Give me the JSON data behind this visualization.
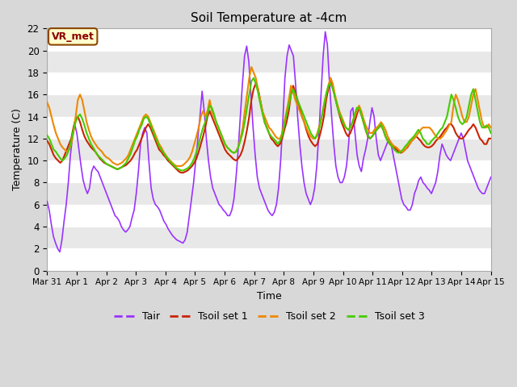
{
  "title": "Soil Temperature at -4cm",
  "xlabel": "Time",
  "ylabel": "Temperature (C)",
  "ylim": [
    0,
    22
  ],
  "xlim": [
    0,
    15
  ],
  "annotation": "VR_met",
  "fig_bg_color": "#d8d8d8",
  "plot_bg_color": "#e8e8e8",
  "band_color": "#ffffff",
  "line_colors": {
    "Tair": "#9933ff",
    "Tsoil set 1": "#cc2200",
    "Tsoil set 2": "#ee8800",
    "Tsoil set 3": "#44cc00"
  },
  "line_widths": {
    "Tair": 1.2,
    "Tsoil set 1": 1.5,
    "Tsoil set 2": 1.5,
    "Tsoil set 3": 1.5
  },
  "xtick_labels": [
    "Mar 31",
    "Apr 1",
    "Apr 2",
    "Apr 3",
    "Apr 4",
    "Apr 5",
    "Apr 6",
    "Apr 7",
    "Apr 8",
    "Apr 9",
    "Apr 10",
    "Apr 11",
    "Apr 12",
    "Apr 13",
    "Apr 14",
    "Apr 15"
  ],
  "xtick_positions": [
    0,
    1,
    2,
    3,
    4,
    5,
    6,
    7,
    8,
    9,
    10,
    11,
    12,
    13,
    14,
    15
  ],
  "ytick_labels": [
    0,
    2,
    4,
    6,
    8,
    10,
    12,
    14,
    16,
    18,
    20,
    22
  ],
  "tair_data": [
    6.3,
    5.5,
    4.2,
    3.1,
    2.5,
    2.0,
    1.7,
    2.8,
    4.5,
    6.0,
    8.0,
    10.5,
    12.2,
    13.3,
    12.5,
    11.0,
    9.5,
    8.2,
    7.5,
    7.0,
    7.5,
    9.0,
    9.5,
    9.2,
    9.0,
    8.5,
    8.0,
    7.5,
    7.0,
    6.5,
    6.0,
    5.5,
    5.0,
    4.8,
    4.5,
    4.0,
    3.7,
    3.5,
    3.7,
    4.0,
    4.8,
    5.5,
    7.0,
    9.0,
    11.5,
    12.5,
    13.0,
    12.5,
    9.8,
    7.5,
    6.5,
    6.0,
    5.8,
    5.5,
    5.0,
    4.5,
    4.2,
    3.8,
    3.5,
    3.2,
    3.0,
    2.8,
    2.7,
    2.6,
    2.5,
    2.8,
    3.5,
    5.0,
    6.5,
    8.0,
    10.0,
    12.0,
    14.0,
    16.3,
    14.5,
    12.0,
    10.0,
    8.5,
    7.5,
    7.0,
    6.5,
    6.0,
    5.8,
    5.5,
    5.3,
    5.0,
    5.0,
    5.5,
    6.5,
    8.5,
    11.0,
    14.0,
    17.0,
    19.5,
    20.4,
    19.0,
    16.0,
    13.0,
    10.5,
    8.5,
    7.5,
    7.0,
    6.5,
    6.0,
    5.5,
    5.2,
    5.0,
    5.3,
    6.0,
    7.5,
    10.0,
    13.5,
    17.5,
    19.5,
    20.5,
    20.0,
    19.5,
    17.0,
    14.0,
    11.5,
    9.5,
    8.0,
    7.0,
    6.5,
    6.0,
    6.5,
    7.5,
    9.5,
    12.5,
    16.0,
    19.5,
    21.7,
    20.5,
    17.0,
    14.0,
    11.5,
    9.5,
    8.5,
    8.0,
    8.0,
    8.5,
    9.5,
    11.5,
    14.5,
    14.8,
    12.5,
    10.5,
    9.5,
    9.0,
    10.2,
    11.0,
    12.0,
    13.5,
    14.8,
    14.0,
    12.0,
    10.5,
    10.0,
    10.5,
    11.0,
    11.5,
    12.0,
    11.5,
    10.5,
    9.5,
    8.5,
    7.5,
    6.5,
    6.0,
    5.8,
    5.5,
    5.5,
    6.0,
    7.0,
    7.5,
    8.2,
    8.5,
    8.0,
    7.8,
    7.5,
    7.3,
    7.0,
    7.5,
    8.0,
    9.0,
    10.5,
    11.5,
    11.0,
    10.5,
    10.2,
    10.0,
    10.5,
    11.0,
    11.5,
    12.0,
    12.5,
    12.0,
    11.0,
    10.0,
    9.5,
    9.0,
    8.5,
    8.0,
    7.5,
    7.2,
    7.0,
    7.0,
    7.5,
    8.0,
    8.5
  ],
  "ts1_data": [
    11.8,
    11.5,
    11.0,
    10.5,
    10.2,
    10.0,
    9.8,
    10.0,
    10.5,
    11.0,
    11.5,
    12.0,
    13.0,
    13.8,
    14.0,
    13.5,
    12.8,
    12.2,
    11.8,
    11.5,
    11.2,
    11.0,
    10.8,
    10.5,
    10.2,
    10.0,
    9.8,
    9.7,
    9.6,
    9.5,
    9.4,
    9.3,
    9.2,
    9.3,
    9.4,
    9.5,
    9.6,
    9.8,
    10.0,
    10.3,
    10.7,
    11.0,
    11.5,
    12.0,
    12.5,
    13.0,
    13.3,
    13.0,
    12.5,
    12.0,
    11.5,
    11.0,
    10.8,
    10.5,
    10.3,
    10.0,
    9.8,
    9.6,
    9.4,
    9.2,
    9.0,
    8.9,
    8.9,
    9.0,
    9.1,
    9.3,
    9.5,
    9.8,
    10.2,
    10.8,
    11.5,
    12.2,
    13.0,
    14.0,
    14.5,
    14.0,
    13.5,
    13.0,
    12.5,
    12.0,
    11.5,
    11.0,
    10.7,
    10.5,
    10.3,
    10.1,
    10.0,
    10.2,
    10.5,
    11.0,
    11.8,
    12.8,
    14.0,
    15.5,
    16.5,
    17.0,
    16.5,
    15.5,
    14.5,
    13.5,
    13.0,
    12.5,
    12.0,
    11.8,
    11.5,
    11.3,
    11.5,
    12.0,
    12.8,
    13.5,
    14.5,
    16.0,
    16.8,
    16.2,
    15.5,
    14.8,
    14.0,
    13.5,
    12.8,
    12.2,
    11.8,
    11.5,
    11.3,
    11.5,
    12.2,
    13.0,
    14.0,
    15.5,
    16.5,
    17.5,
    16.8,
    15.8,
    15.0,
    14.2,
    13.5,
    13.0,
    12.5,
    12.2,
    12.5,
    13.0,
    13.5,
    14.2,
    14.8,
    14.2,
    13.5,
    12.8,
    12.2,
    12.0,
    12.2,
    12.5,
    12.8,
    13.0,
    13.2,
    12.8,
    12.2,
    11.8,
    11.5,
    11.3,
    11.2,
    11.0,
    10.8,
    10.7,
    10.8,
    11.0,
    11.2,
    11.5,
    11.8,
    12.0,
    12.2,
    12.0,
    11.8,
    11.5,
    11.3,
    11.2,
    11.2,
    11.3,
    11.5,
    11.8,
    12.0,
    12.2,
    12.5,
    12.8,
    13.0,
    13.3,
    13.3,
    13.0,
    12.5,
    12.2,
    12.0,
    12.0,
    12.2,
    12.5,
    12.8,
    13.0,
    13.3,
    13.0,
    12.5,
    12.0,
    11.8,
    11.5,
    11.5,
    12.0,
    12.0
  ],
  "ts2_data": [
    15.3,
    14.8,
    14.0,
    13.2,
    12.5,
    12.0,
    11.5,
    11.2,
    11.0,
    10.8,
    11.0,
    11.5,
    12.5,
    14.0,
    15.5,
    16.0,
    15.5,
    14.5,
    13.5,
    12.8,
    12.2,
    11.8,
    11.5,
    11.2,
    11.0,
    10.8,
    10.5,
    10.3,
    10.2,
    10.0,
    9.8,
    9.7,
    9.6,
    9.7,
    9.8,
    10.0,
    10.2,
    10.5,
    11.0,
    11.5,
    12.0,
    12.5,
    13.0,
    13.5,
    14.0,
    14.2,
    14.0,
    13.5,
    13.0,
    12.5,
    12.0,
    11.5,
    11.2,
    10.8,
    10.5,
    10.2,
    10.0,
    9.8,
    9.6,
    9.5,
    9.5,
    9.5,
    9.6,
    9.8,
    10.0,
    10.3,
    10.8,
    11.5,
    12.2,
    13.0,
    14.0,
    14.5,
    14.0,
    14.5,
    15.5,
    14.5,
    14.0,
    13.5,
    13.0,
    12.5,
    12.0,
    11.5,
    11.2,
    11.0,
    10.8,
    10.7,
    10.8,
    11.2,
    12.0,
    13.0,
    14.5,
    16.0,
    17.5,
    18.5,
    18.0,
    17.5,
    16.5,
    15.5,
    14.5,
    14.0,
    13.5,
    13.0,
    12.8,
    12.5,
    12.2,
    12.0,
    12.0,
    12.5,
    13.5,
    14.5,
    15.5,
    16.8,
    16.2,
    15.5,
    15.0,
    14.5,
    14.0,
    13.5,
    13.0,
    12.5,
    12.2,
    12.0,
    12.0,
    12.5,
    13.2,
    14.0,
    15.0,
    16.0,
    16.8,
    17.5,
    17.0,
    16.0,
    15.2,
    14.5,
    14.0,
    13.5,
    13.0,
    12.8,
    13.0,
    13.5,
    14.0,
    14.5,
    15.0,
    14.5,
    13.8,
    13.2,
    12.8,
    12.5,
    12.5,
    12.8,
    13.0,
    13.2,
    13.5,
    13.2,
    12.8,
    12.2,
    11.8,
    11.5,
    11.3,
    11.2,
    11.0,
    10.8,
    10.8,
    11.0,
    11.3,
    11.5,
    11.8,
    12.0,
    12.2,
    12.5,
    12.8,
    13.0,
    13.0,
    13.0,
    13.0,
    12.8,
    12.5,
    12.2,
    12.0,
    12.0,
    12.2,
    12.5,
    12.8,
    13.2,
    13.5,
    15.0,
    16.0,
    15.5,
    14.8,
    14.0,
    13.5,
    13.5,
    14.0,
    15.0,
    16.0,
    16.5,
    15.5,
    14.5,
    13.5,
    13.0,
    13.0,
    13.3,
    13.0
  ],
  "ts3_data": [
    12.3,
    12.0,
    11.5,
    11.0,
    10.8,
    10.5,
    10.2,
    10.0,
    10.2,
    10.5,
    11.0,
    11.8,
    12.8,
    13.5,
    14.0,
    14.2,
    13.8,
    13.2,
    12.5,
    12.0,
    11.5,
    11.2,
    10.8,
    10.5,
    10.3,
    10.1,
    9.9,
    9.7,
    9.6,
    9.5,
    9.4,
    9.3,
    9.2,
    9.3,
    9.4,
    9.6,
    9.8,
    10.2,
    10.6,
    11.2,
    11.8,
    12.2,
    12.8,
    13.2,
    13.8,
    14.0,
    13.8,
    13.3,
    12.8,
    12.2,
    11.8,
    11.3,
    11.0,
    10.7,
    10.4,
    10.2,
    9.9,
    9.7,
    9.5,
    9.3,
    9.2,
    9.1,
    9.1,
    9.2,
    9.3,
    9.5,
    9.8,
    10.2,
    10.8,
    11.5,
    12.3,
    13.0,
    13.5,
    14.2,
    15.0,
    14.8,
    14.2,
    13.5,
    13.0,
    12.5,
    12.0,
    11.5,
    11.2,
    11.0,
    10.8,
    10.7,
    10.8,
    11.2,
    11.8,
    12.5,
    13.5,
    14.8,
    16.0,
    17.2,
    17.5,
    17.0,
    16.2,
    15.2,
    14.3,
    13.5,
    13.0,
    12.5,
    12.2,
    12.0,
    11.8,
    11.5,
    11.8,
    12.3,
    13.2,
    14.2,
    15.0,
    16.0,
    16.5,
    16.0,
    15.5,
    15.0,
    14.5,
    14.0,
    13.5,
    13.0,
    12.5,
    12.2,
    12.0,
    12.3,
    13.0,
    14.0,
    15.0,
    16.0,
    16.8,
    17.0,
    16.5,
    15.8,
    15.0,
    14.3,
    13.8,
    13.3,
    13.0,
    12.8,
    13.0,
    13.5,
    14.2,
    14.8,
    14.8,
    14.2,
    13.5,
    12.8,
    12.3,
    12.0,
    12.2,
    12.5,
    12.8,
    13.0,
    13.3,
    12.8,
    12.2,
    11.8,
    11.5,
    11.3,
    11.0,
    10.8,
    10.7,
    10.8,
    11.0,
    11.3,
    11.5,
    11.8,
    12.0,
    12.2,
    12.5,
    12.8,
    12.5,
    12.0,
    11.8,
    11.5,
    11.5,
    11.8,
    12.0,
    12.2,
    12.5,
    12.8,
    13.0,
    13.5,
    14.0,
    15.0,
    16.0,
    15.5,
    14.8,
    14.0,
    13.5,
    13.3,
    13.5,
    14.0,
    15.0,
    16.0,
    16.5,
    15.5,
    14.5,
    13.5,
    13.0,
    13.0,
    13.2,
    13.0,
    12.5
  ]
}
